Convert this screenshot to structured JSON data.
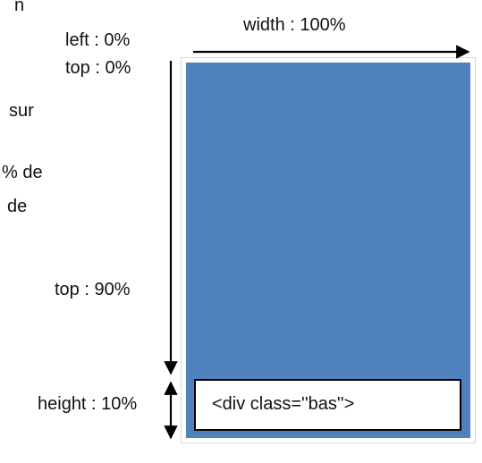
{
  "left_text_fragments": [
    "n",
    "sur",
    "% de",
    "de"
  ],
  "labels": {
    "width": "width : 100%",
    "left": "left : 0%",
    "top_start": "top : 0%",
    "top_90": "top : 90%",
    "height": "height : 10%"
  },
  "element": {
    "class_label": "<div class=''bas''>"
  },
  "colors": {
    "container_fill": "#4f81bd",
    "outline": "#d9d9d9",
    "arrow": "#000000"
  }
}
